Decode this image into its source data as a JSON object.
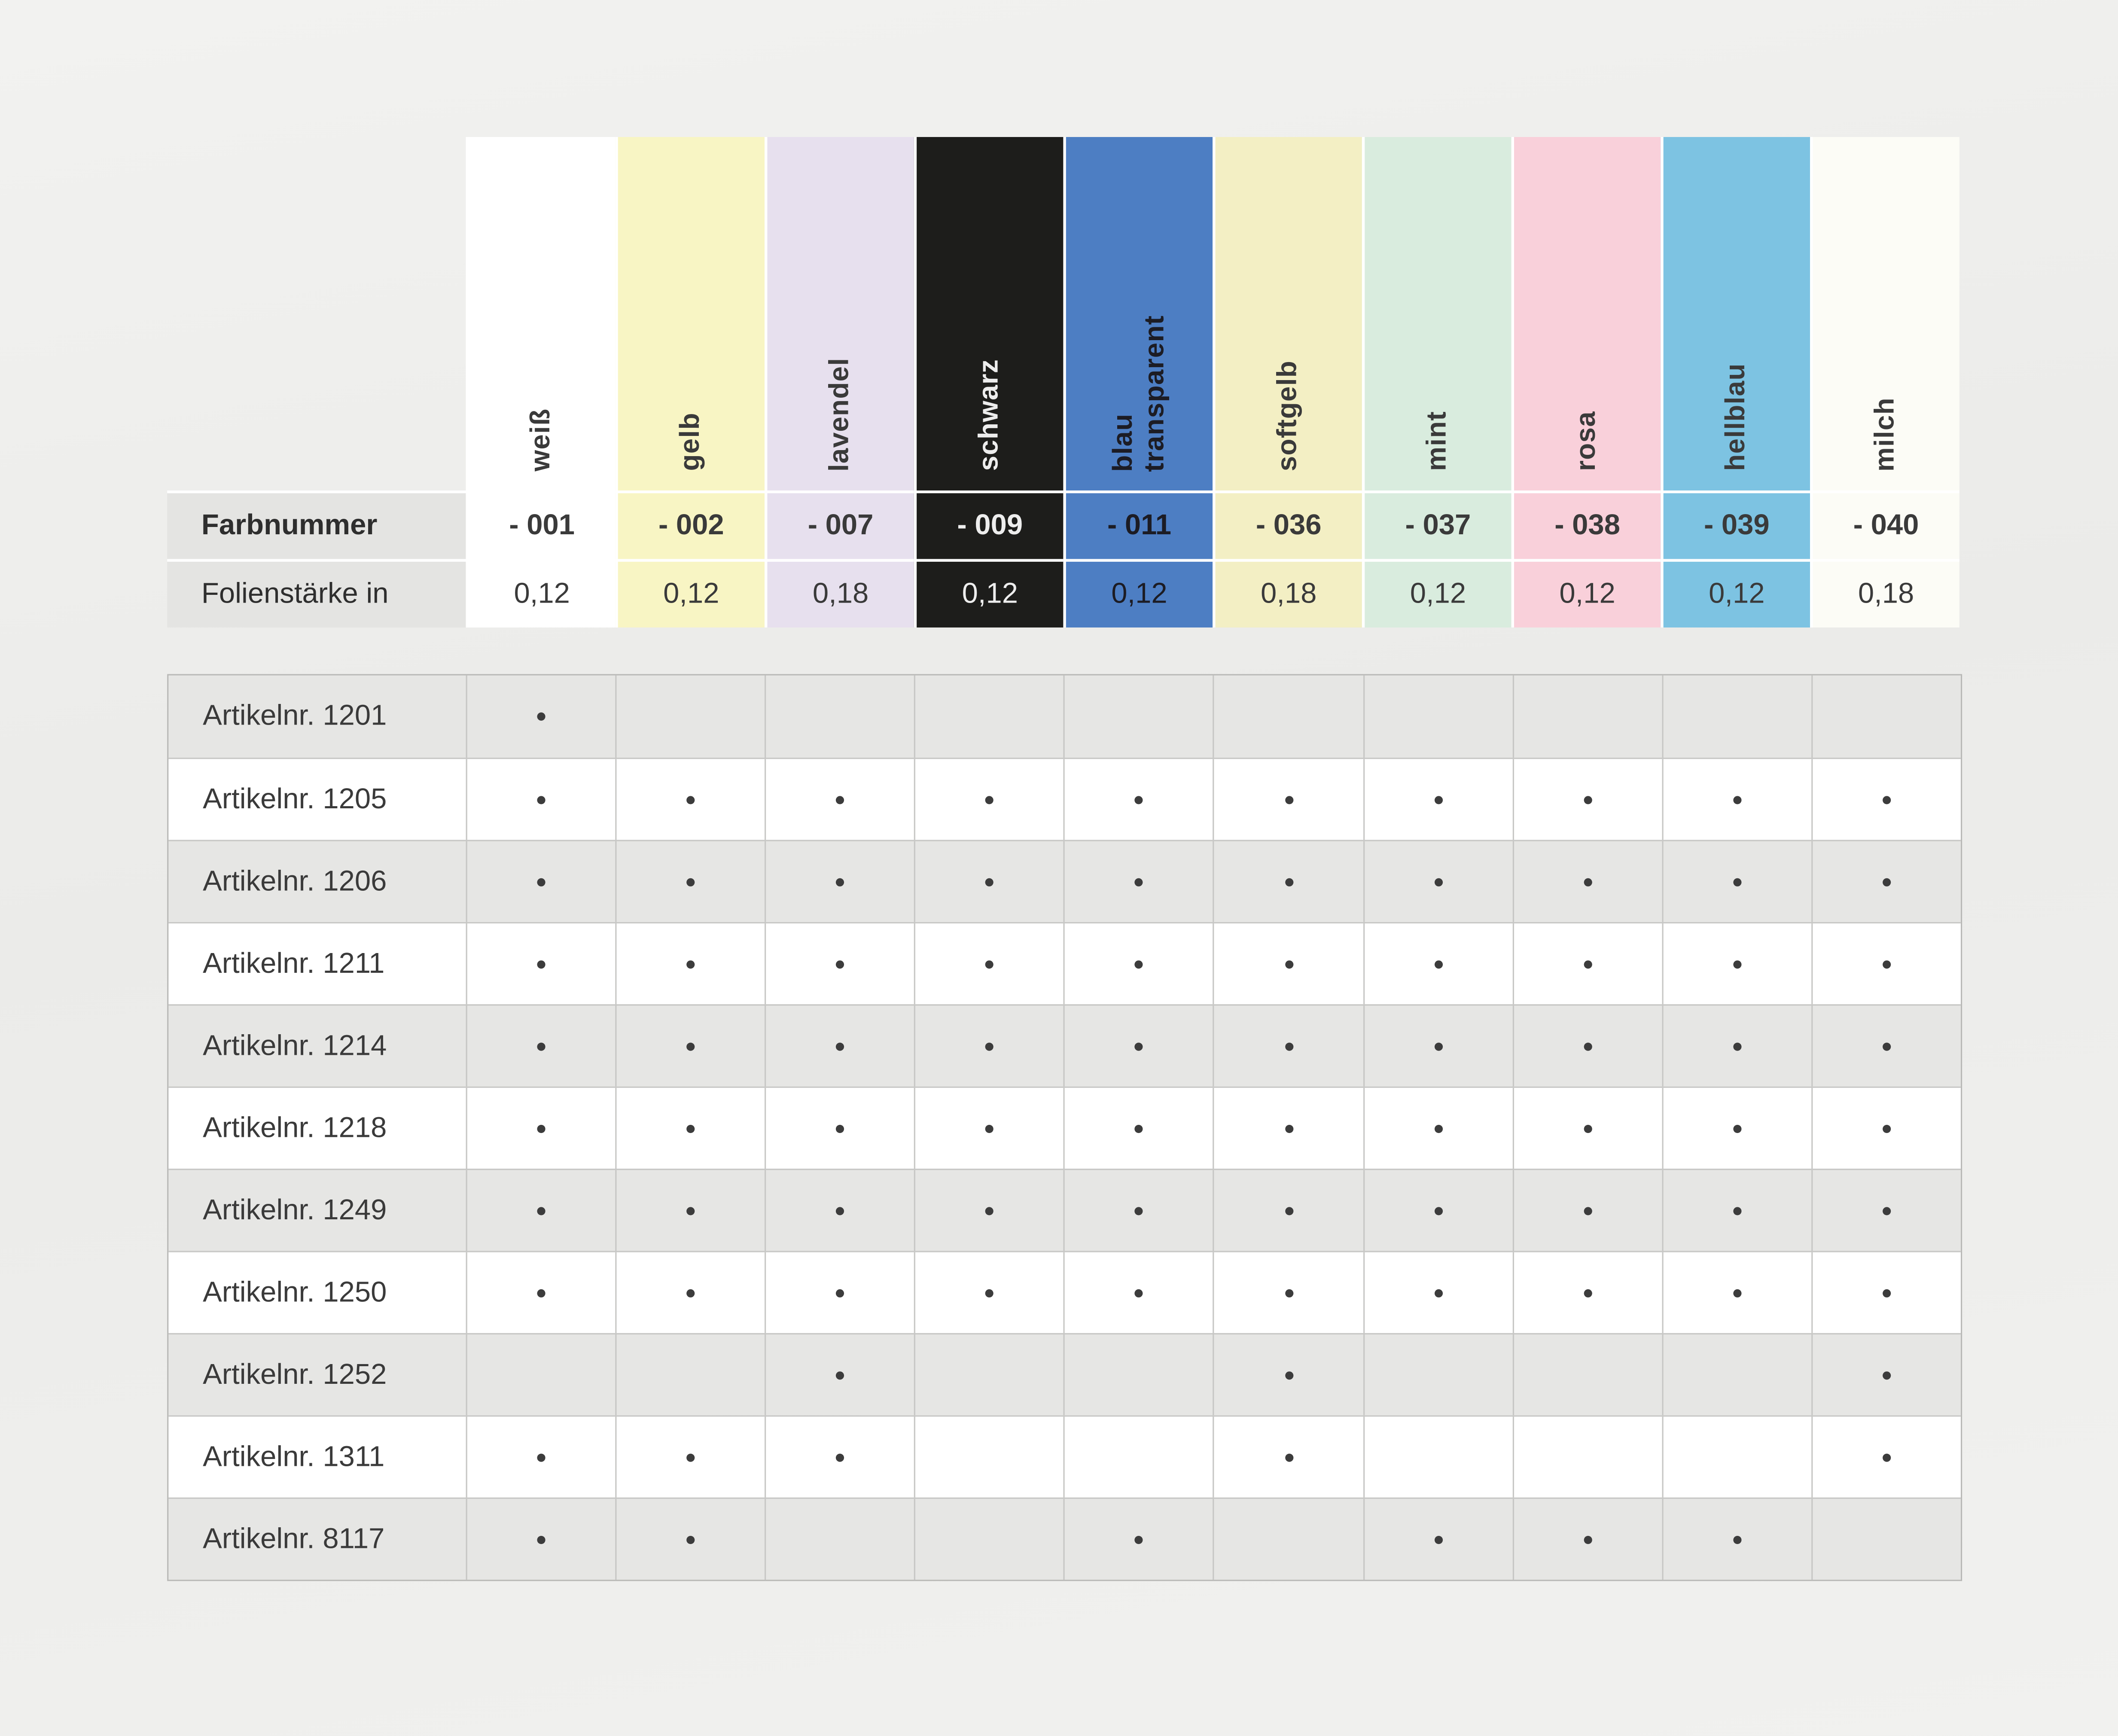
{
  "page": {
    "background": "#ececea"
  },
  "header": {
    "row_labels": {
      "farbnummer": "Farbnummer",
      "folienstaerke": "Folienstärke in"
    },
    "columns": [
      {
        "name": "weiß",
        "farbnummer": "- 001",
        "folienstaerke": "0,12",
        "color": "#ffffff",
        "text": "#3a3a3a"
      },
      {
        "name": "gelb",
        "farbnummer": "- 002",
        "folienstaerke": "0,12",
        "color": "#f8f5c4",
        "text": "#3a3a3a"
      },
      {
        "name": "lavendel",
        "farbnummer": "- 007",
        "folienstaerke": "0,18",
        "color": "#e7e0ee",
        "text": "#3a3a3a"
      },
      {
        "name": "schwarz",
        "farbnummer": "- 009",
        "folienstaerke": "0,12",
        "color": "#1d1d1b",
        "text": "#ededed"
      },
      {
        "name": "blau\ntransparent",
        "farbnummer": "- 011",
        "folienstaerke": "0,12",
        "color": "#4d7ec3",
        "text": "#1c1c24"
      },
      {
        "name": "softgelb",
        "farbnummer": "- 036",
        "folienstaerke": "0,18",
        "color": "#f3efc4",
        "text": "#3a3a3a"
      },
      {
        "name": "mint",
        "farbnummer": "- 037",
        "folienstaerke": "0,12",
        "color": "#d9ecde",
        "text": "#3a3a3a"
      },
      {
        "name": "rosa",
        "farbnummer": "- 038",
        "folienstaerke": "0,12",
        "color": "#f9d0da",
        "text": "#3a3a3a"
      },
      {
        "name": "hellblau",
        "farbnummer": "- 039",
        "folienstaerke": "0,12",
        "color": "#7dc3e2",
        "text": "#3a3a3a"
      },
      {
        "name": "milch",
        "farbnummer": "- 040",
        "folienstaerke": "0,18",
        "color": "#fcfcf6",
        "text": "#3a3a3a"
      }
    ]
  },
  "matrix": {
    "articles": [
      {
        "label": "Artikelnr. 1201",
        "dots": [
          1,
          0,
          0,
          0,
          0,
          0,
          0,
          0,
          0,
          0
        ]
      },
      {
        "label": "Artikelnr. 1205",
        "dots": [
          1,
          1,
          1,
          1,
          1,
          1,
          1,
          1,
          1,
          1
        ]
      },
      {
        "label": "Artikelnr. 1206",
        "dots": [
          1,
          1,
          1,
          1,
          1,
          1,
          1,
          1,
          1,
          1
        ]
      },
      {
        "label": "Artikelnr. 1211",
        "dots": [
          1,
          1,
          1,
          1,
          1,
          1,
          1,
          1,
          1,
          1
        ]
      },
      {
        "label": "Artikelnr. 1214",
        "dots": [
          1,
          1,
          1,
          1,
          1,
          1,
          1,
          1,
          1,
          1
        ]
      },
      {
        "label": "Artikelnr. 1218",
        "dots": [
          1,
          1,
          1,
          1,
          1,
          1,
          1,
          1,
          1,
          1
        ]
      },
      {
        "label": "Artikelnr. 1249",
        "dots": [
          1,
          1,
          1,
          1,
          1,
          1,
          1,
          1,
          1,
          1
        ]
      },
      {
        "label": "Artikelnr. 1250",
        "dots": [
          1,
          1,
          1,
          1,
          1,
          1,
          1,
          1,
          1,
          1
        ]
      },
      {
        "label": "Artikelnr. 1252",
        "dots": [
          0,
          0,
          1,
          0,
          0,
          1,
          0,
          0,
          0,
          1
        ]
      },
      {
        "label": "Artikelnr. 1311",
        "dots": [
          1,
          1,
          1,
          0,
          0,
          1,
          0,
          0,
          0,
          1
        ]
      },
      {
        "label": "Artikelnr. 8117",
        "dots": [
          1,
          1,
          0,
          0,
          1,
          0,
          1,
          1,
          1,
          0
        ]
      }
    ]
  }
}
